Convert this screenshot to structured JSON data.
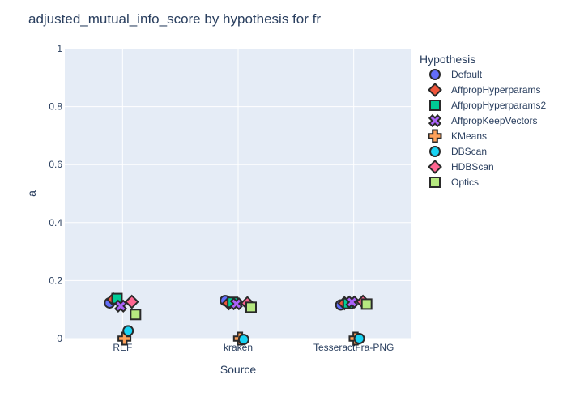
{
  "chart_data": {
    "type": "scatter",
    "title": "adjusted_mutual_info_score by hypothesis for fr",
    "xlabel": "Source",
    "ylabel": "a",
    "categories": [
      "REF",
      "kraken",
      "TesseractFra-PNG"
    ],
    "ylim": [
      0,
      1
    ],
    "yticks": [
      0,
      0.2,
      0.4,
      0.6,
      0.8,
      1
    ],
    "ytick_labels": [
      "0",
      "0.2",
      "0.4",
      "0.6",
      "0.8",
      "1"
    ],
    "grid": true,
    "plot_bg": "#e5ecf6",
    "legend": {
      "title": "Hypothesis",
      "placement": "right"
    },
    "series": [
      {
        "name": "Default",
        "symbol": "circle",
        "color": "#636efa",
        "values": [
          0.123,
          0.131,
          0.116
        ]
      },
      {
        "name": "AffpropHyperparams",
        "symbol": "diamond",
        "color": "#EF553B",
        "values": [
          0.135,
          0.122,
          0.122
        ]
      },
      {
        "name": "AffpropHyperparams2",
        "symbol": "square",
        "color": "#00cc96",
        "values": [
          0.138,
          0.125,
          0.121
        ]
      },
      {
        "name": "AffpropKeepVectors",
        "symbol": "x",
        "color": "#ab63fa",
        "values": [
          0.112,
          0.12,
          0.126
        ]
      },
      {
        "name": "KMeans",
        "symbol": "cross",
        "color": "#FFA15A",
        "values": [
          0.0,
          0.0,
          0.0
        ]
      },
      {
        "name": "DBScan",
        "symbol": "circle",
        "color": "#19d3f3",
        "values": [
          0.027,
          -0.003,
          0.0
        ]
      },
      {
        "name": "HDBScan",
        "symbol": "diamond",
        "color": "#FF6692",
        "values": [
          0.127,
          0.122,
          0.127
        ]
      },
      {
        "name": "Optics",
        "symbol": "square",
        "color": "#B6E880",
        "values": [
          0.083,
          0.108,
          0.119
        ]
      }
    ]
  }
}
